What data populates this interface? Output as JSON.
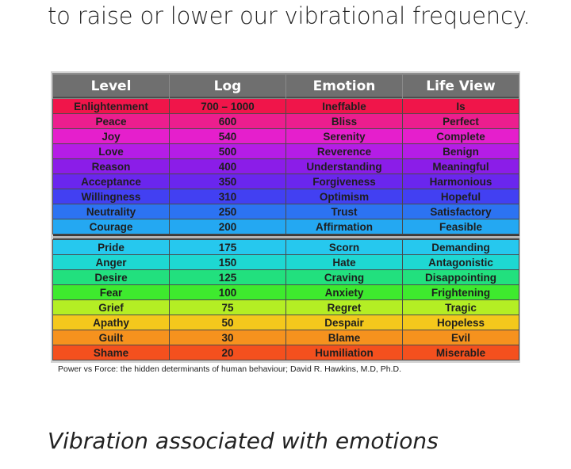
{
  "intro_text": "to raise or lower our vibrational frequency.",
  "table": {
    "headers": [
      "Level",
      "Log",
      "Emotion",
      "Life View"
    ],
    "positive_rows": [
      {
        "level": "Enlightenment",
        "log": "700 – 1000",
        "emotion": "Ineffable",
        "life_view": "Is",
        "color": "#f0154a"
      },
      {
        "level": "Peace",
        "log": "600",
        "emotion": "Bliss",
        "life_view": "Perfect",
        "color": "#ec1e8e"
      },
      {
        "level": "Joy",
        "log": "540",
        "emotion": "Serenity",
        "life_view": "Complete",
        "color": "#e51fcc"
      },
      {
        "level": "Love",
        "log": "500",
        "emotion": "Reverence",
        "life_view": "Benign",
        "color": "#b51de6"
      },
      {
        "level": "Reason",
        "log": "400",
        "emotion": "Understanding",
        "life_view": "Meaningful",
        "color": "#8b1de8"
      },
      {
        "level": "Acceptance",
        "log": "350",
        "emotion": "Forgiveness",
        "life_view": "Harmonious",
        "color": "#6a26ee"
      },
      {
        "level": "Willingness",
        "log": "310",
        "emotion": "Optimism",
        "life_view": "Hopeful",
        "color": "#4240f2"
      },
      {
        "level": "Neutrality",
        "log": "250",
        "emotion": "Trust",
        "life_view": "Satisfactory",
        "color": "#2c73f2"
      },
      {
        "level": "Courage",
        "log": "200",
        "emotion": "Affirmation",
        "life_view": "Feasible",
        "color": "#24a8f2"
      }
    ],
    "negative_rows": [
      {
        "level": "Pride",
        "log": "175",
        "emotion": "Scorn",
        "life_view": "Demanding",
        "color": "#26c8ee"
      },
      {
        "level": "Anger",
        "log": "150",
        "emotion": "Hate",
        "life_view": "Antagonistic",
        "color": "#1ed8d2"
      },
      {
        "level": "Desire",
        "log": "125",
        "emotion": "Craving",
        "life_view": "Disappointing",
        "color": "#22e07e"
      },
      {
        "level": "Fear",
        "log": "100",
        "emotion": "Anxiety",
        "life_view": "Frightening",
        "color": "#3eea2e"
      },
      {
        "level": "Grief",
        "log": "75",
        "emotion": "Regret",
        "life_view": "Tragic",
        "color": "#b4ee24"
      },
      {
        "level": "Apathy",
        "log": "50",
        "emotion": "Despair",
        "life_view": "Hopeless",
        "color": "#f4c81c"
      },
      {
        "level": "Guilt",
        "log": "30",
        "emotion": "Blame",
        "life_view": "Evil",
        "color": "#f6921e"
      },
      {
        "level": "Shame",
        "log": "20",
        "emotion": "Humiliation",
        "life_view": "Miserable",
        "color": "#f4501e"
      }
    ]
  },
  "source_note": "Power vs Force: the hidden determinants of human behaviour; David R. Hawkins, M.D, Ph.D.",
  "caption": "Vibration associated with emotions"
}
